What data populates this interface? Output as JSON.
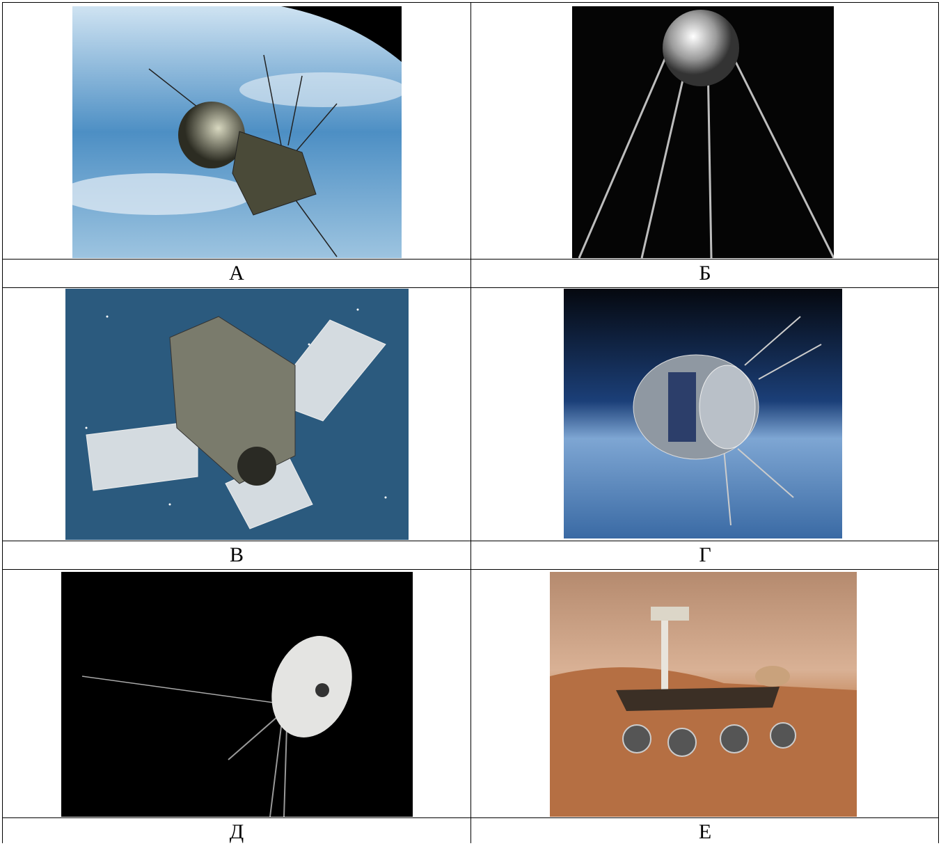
{
  "table": {
    "rows": [
      [
        "А",
        "Б"
      ],
      [
        "В",
        "Г"
      ],
      [
        "Д",
        "Е"
      ]
    ]
  }
}
